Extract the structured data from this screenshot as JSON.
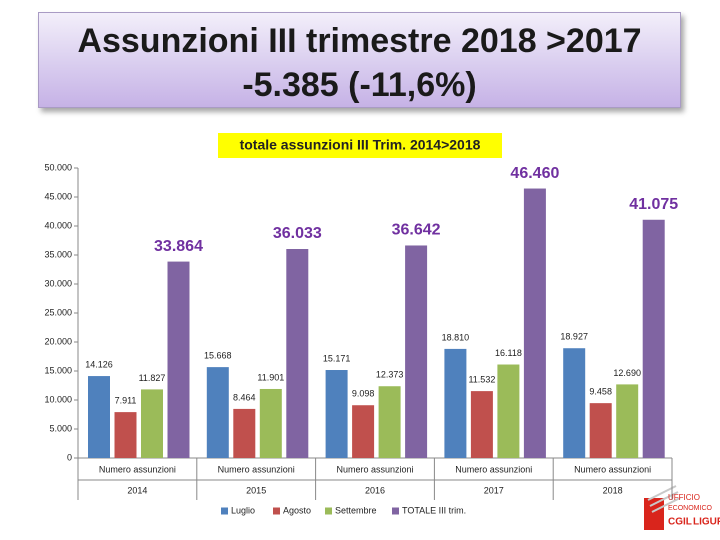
{
  "title_line1": "Assunzioni III trimestre 2018 >2017",
  "title_line2": "-5.385 (-11,6%)",
  "chart_data": {
    "type": "bar",
    "title": "totale assunzioni III Trim. 2014>2018",
    "categories": [
      "2014",
      "2015",
      "2016",
      "2017",
      "2018"
    ],
    "sub_labels": [
      "Numero assunzioni",
      "Numero assunzioni",
      "Numero assunzioni",
      "Numero assunzioni",
      "Numero assunzioni"
    ],
    "series": [
      {
        "name": "Luglio",
        "color": "#4f81bd",
        "values": [
          14126,
          15668,
          15171,
          18810,
          18927
        ],
        "value_labels": [
          "14.126",
          "15.668",
          "15.171",
          "18.810",
          "18.927"
        ]
      },
      {
        "name": "Agosto",
        "color": "#c0504d",
        "values": [
          7911,
          8464,
          9098,
          11532,
          9458
        ],
        "value_labels": [
          "7.911",
          "8.464",
          "9.098",
          "11.532",
          "9.458"
        ]
      },
      {
        "name": "Settembre",
        "color": "#9bbb59",
        "values": [
          11827,
          11901,
          12373,
          16118,
          12690
        ],
        "value_labels": [
          "11.827",
          "11.901",
          "12.373",
          "16.118",
          "12.690"
        ]
      },
      {
        "name": "TOTALE  III trim.",
        "color": "#8064a2",
        "values": [
          33864,
          36033,
          36642,
          46460,
          41075
        ],
        "value_labels": [
          "33.864",
          "36.033",
          "36.642",
          "46.460",
          "41.075"
        ],
        "label_color": "#7030a0"
      }
    ],
    "ylim": [
      0,
      50000
    ],
    "yticks": [
      0,
      {
        "value": 5000,
        "label": "5.000"
      },
      {
        "value": 10000,
        "label": "10.000"
      },
      {
        "value": 15000,
        "label": "15.000"
      },
      {
        "value": 20000,
        "label": "20.000"
      },
      {
        "value": 25000,
        "label": "25.000"
      },
      {
        "value": 30000,
        "label": "30.000"
      },
      {
        "value": 35000,
        "label": "35.000"
      },
      {
        "value": 40000,
        "label": "40.000"
      },
      {
        "value": 45000,
        "label": "45.000"
      },
      {
        "value": 50000,
        "label": "50.000"
      }
    ],
    "grid": false,
    "legend": "bottom"
  },
  "logo": {
    "line1": "UFFICIO",
    "line2": "ECONOMICO",
    "line3": "CGIL",
    "line4": "LIGURIA"
  }
}
